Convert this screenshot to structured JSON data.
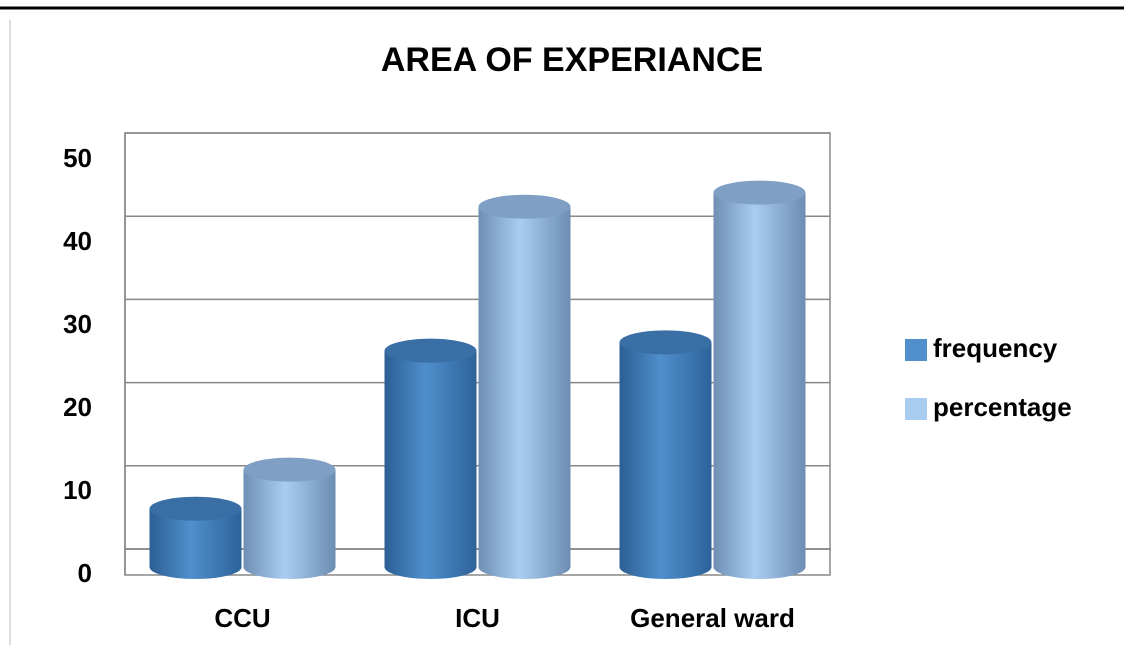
{
  "chart_data": {
    "type": "bar",
    "title": "AREA OF EXPERIANCE",
    "categories": [
      "CCU",
      "ICU",
      "General ward"
    ],
    "series": [
      {
        "name": "frequency",
        "color": "#4f8fcc",
        "values": [
          7,
          26,
          27
        ]
      },
      {
        "name": "percentage",
        "color": "#a9cdf0",
        "values": [
          11.7,
          43.3,
          45
        ]
      }
    ],
    "ylim": [
      0,
      50
    ],
    "yticks": [
      0,
      10,
      20,
      30,
      40,
      50
    ],
    "grid": true,
    "legend": "right"
  }
}
